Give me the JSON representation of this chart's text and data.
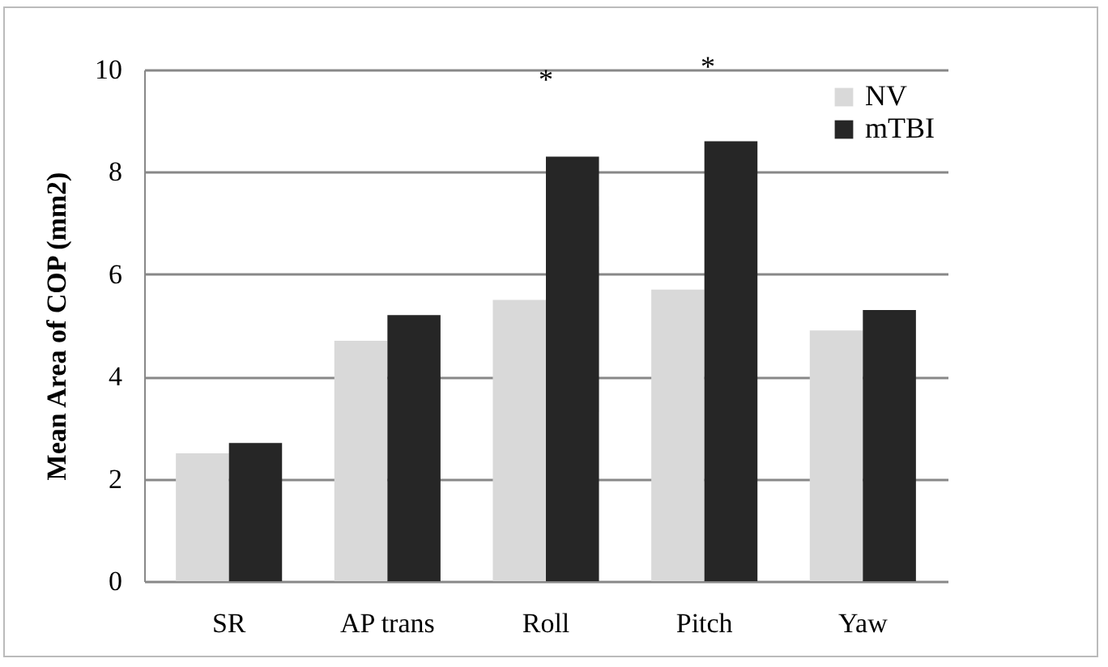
{
  "chart_data": {
    "type": "bar",
    "ylabel": "Mean Area of COP (mm2)",
    "categories": [
      "SR",
      "AP trans",
      "Roll",
      "Pitch",
      "Yaw"
    ],
    "series": [
      {
        "name": "NV",
        "color": "#d9d9d9",
        "values": [
          2.5,
          4.7,
          5.5,
          5.7,
          4.9
        ]
      },
      {
        "name": "mTBI",
        "color": "#262626",
        "values": [
          2.7,
          5.2,
          8.3,
          8.6,
          5.3
        ]
      }
    ],
    "ylim": [
      0,
      10
    ],
    "yticks": [
      0,
      2,
      4,
      6,
      8,
      10
    ],
    "grid": "y",
    "legend": "top right",
    "annotations": [
      "*",
      "*"
    ]
  }
}
